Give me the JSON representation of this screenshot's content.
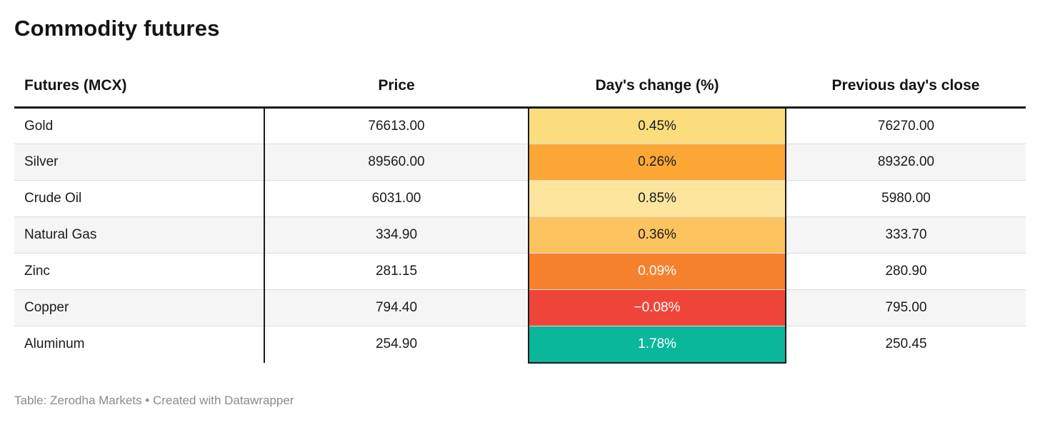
{
  "title": "Commodity futures",
  "table": {
    "columns": [
      {
        "label": "Futures (MCX)"
      },
      {
        "label": "Price"
      },
      {
        "label": "Day's change (%)"
      },
      {
        "label": "Previous day's close"
      }
    ],
    "rows": [
      {
        "name": "Gold",
        "price": "76613.00",
        "change": "0.45%",
        "change_bg": "#fbdd7d",
        "change_fg": "#1a1a1a",
        "prev_close": "76270.00"
      },
      {
        "name": "Silver",
        "price": "89560.00",
        "change": "0.26%",
        "change_bg": "#fca735",
        "change_fg": "#1a1a1a",
        "prev_close": "89326.00"
      },
      {
        "name": "Crude Oil",
        "price": "6031.00",
        "change": "0.85%",
        "change_bg": "#fde59d",
        "change_fg": "#1a1a1a",
        "prev_close": "5980.00"
      },
      {
        "name": "Natural Gas",
        "price": "334.90",
        "change": "0.36%",
        "change_bg": "#fcc35e",
        "change_fg": "#1a1a1a",
        "prev_close": "333.70"
      },
      {
        "name": "Zinc",
        "price": "281.15",
        "change": "0.09%",
        "change_bg": "#f6812c",
        "change_fg": "#ffffff",
        "prev_close": "280.90"
      },
      {
        "name": "Copper",
        "price": "794.40",
        "change": "−0.08%",
        "change_bg": "#ef4539",
        "change_fg": "#ffffff",
        "prev_close": "795.00"
      },
      {
        "name": "Aluminum",
        "price": "254.90",
        "change": "1.78%",
        "change_bg": "#0bb79b",
        "change_fg": "#ffffff",
        "prev_close": "250.45"
      }
    ]
  },
  "footer": "Table: Zerodha Markets • Created with Datawrapper",
  "colors": {
    "header_rule": "#1a1a1a",
    "zebra_stripe": "#f5f5f5",
    "row_separator": "#dddddd",
    "attribution_text": "#8b8b8b"
  },
  "chart_data": {
    "type": "table",
    "title": "Commodity futures",
    "columns": [
      "Futures (MCX)",
      "Price",
      "Day's change (%)",
      "Previous day's close"
    ],
    "rows": [
      [
        "Gold",
        76613.0,
        "0.45%",
        76270.0
      ],
      [
        "Silver",
        89560.0,
        "0.26%",
        89326.0
      ],
      [
        "Crude Oil",
        6031.0,
        "0.85%",
        5980.0
      ],
      [
        "Natural Gas",
        334.9,
        "0.36%",
        333.7
      ],
      [
        "Zinc",
        281.15,
        "0.09%",
        280.9
      ],
      [
        "Copper",
        794.4,
        "-0.08%",
        795.0
      ],
      [
        "Aluminum",
        254.9,
        "1.78%",
        250.45
      ]
    ],
    "layout_hints": {
      "change_column_colored": true,
      "negative_color": "#ef4539",
      "positive_high_color": "#0bb79b",
      "zebra_striping": true
    }
  }
}
